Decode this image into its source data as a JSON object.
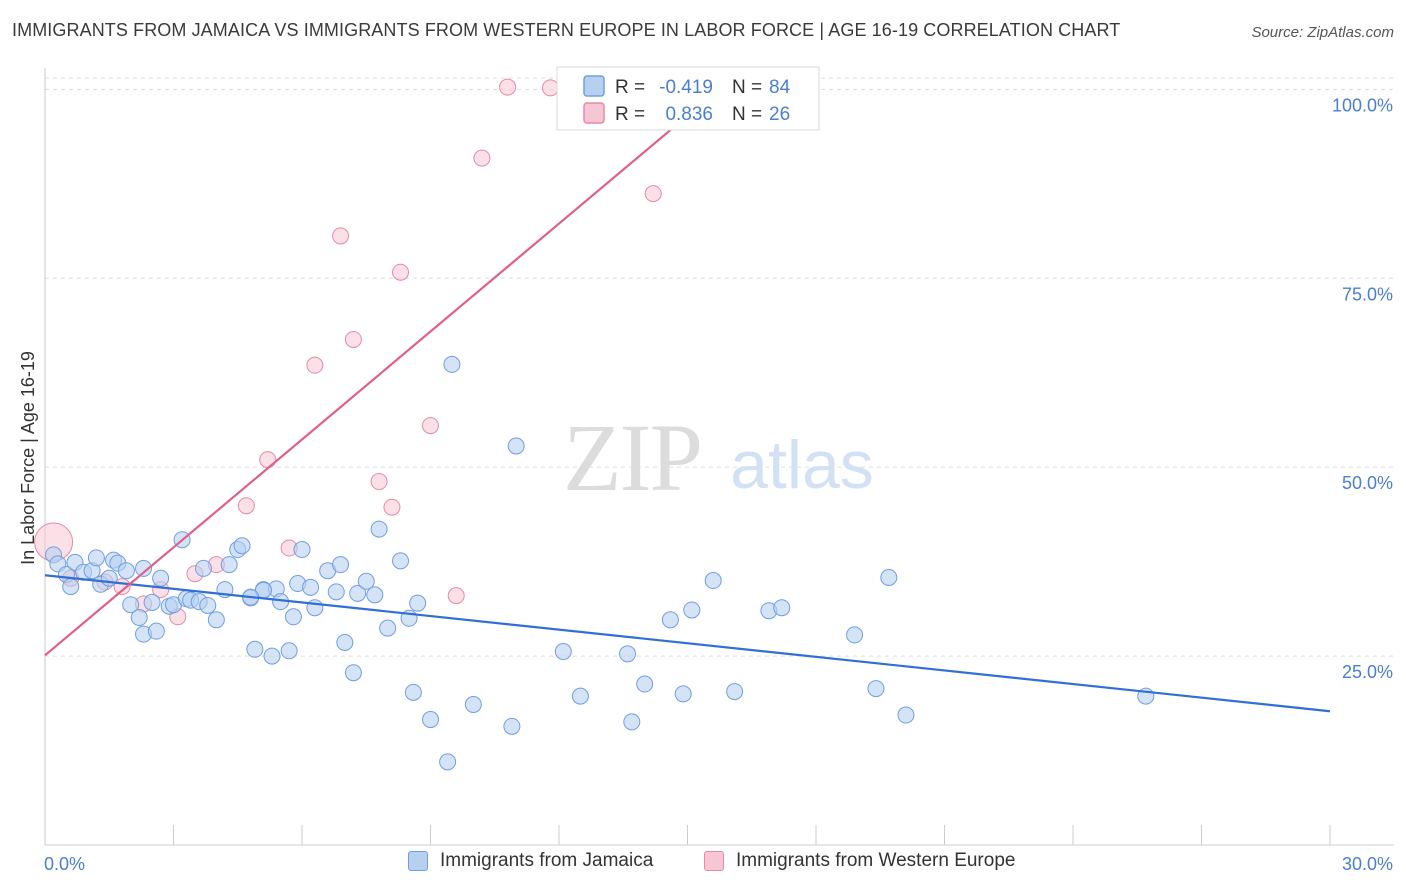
{
  "title": "IMMIGRANTS FROM JAMAICA VS IMMIGRANTS FROM WESTERN EUROPE IN LABOR FORCE | AGE 16-19 CORRELATION CHART",
  "source": "Source: ZipAtlas.com",
  "watermark": {
    "zip": "ZIP",
    "atlas": "atlas"
  },
  "colors": {
    "blue_fill": "#b8d0f0",
    "blue_stroke": "#6f9fe0",
    "blue_line": "#2f6fd6",
    "pink_fill": "#f7c6d4",
    "pink_stroke": "#e68aa6",
    "pink_line": "#e0608a",
    "tick_label": "#4a7fd0",
    "grid": "#dddddd"
  },
  "legend_stats": [
    {
      "r_label": "R =",
      "r_value": "-0.419",
      "n_label": "N =",
      "n_value": "84",
      "series": "blue"
    },
    {
      "r_label": "R =",
      "r_value": "0.836",
      "n_label": "N =",
      "n_value": "26",
      "series": "pink"
    }
  ],
  "chart_data": {
    "type": "scatter",
    "ylabel": "In Labor Force | Age 16-19",
    "xlim": [
      0,
      30
    ],
    "ylim": [
      0,
      101.5
    ],
    "x_tick_labels": [
      {
        "value": 0,
        "label": "0.0%"
      },
      {
        "value": 30,
        "label": "30.0%"
      }
    ],
    "y_tick_labels": [
      {
        "value": 25,
        "label": "25.0%"
      },
      {
        "value": 50,
        "label": "50.0%"
      },
      {
        "value": 75,
        "label": "75.0%"
      },
      {
        "value": 100,
        "label": "100.0%"
      }
    ],
    "grid": true,
    "legend_position": "bottom",
    "series": [
      {
        "name": "Immigrants from Jamaica",
        "color": "blue",
        "trend": {
          "x": [
            0,
            30
          ],
          "y": [
            35.7,
            17.7
          ]
        },
        "points": [
          [
            0.2,
            38.4
          ],
          [
            0.3,
            37.2
          ],
          [
            0.5,
            35.8
          ],
          [
            0.6,
            34.2
          ],
          [
            0.7,
            37.4
          ],
          [
            0.9,
            36.1
          ],
          [
            1.1,
            36.3
          ],
          [
            1.2,
            38.0
          ],
          [
            1.3,
            34.5
          ],
          [
            1.5,
            35.3
          ],
          [
            1.6,
            37.7
          ],
          [
            1.7,
            37.3
          ],
          [
            1.9,
            36.3
          ],
          [
            2.0,
            31.8
          ],
          [
            2.2,
            30.1
          ],
          [
            2.3,
            27.9
          ],
          [
            2.3,
            36.6
          ],
          [
            2.5,
            32.1
          ],
          [
            2.6,
            28.3
          ],
          [
            2.7,
            35.3
          ],
          [
            2.9,
            31.6
          ],
          [
            3.0,
            31.8
          ],
          [
            3.2,
            40.4
          ],
          [
            3.3,
            32.6
          ],
          [
            3.4,
            32.4
          ],
          [
            3.6,
            32.2
          ],
          [
            3.7,
            36.6
          ],
          [
            3.8,
            31.7
          ],
          [
            4.0,
            29.8
          ],
          [
            4.2,
            33.8
          ],
          [
            4.3,
            37.1
          ],
          [
            4.5,
            39.1
          ],
          [
            4.6,
            39.6
          ],
          [
            4.8,
            32.7
          ],
          [
            4.9,
            25.9
          ],
          [
            5.1,
            33.8
          ],
          [
            5.3,
            25.0
          ],
          [
            5.4,
            33.9
          ],
          [
            5.5,
            32.2
          ],
          [
            5.7,
            25.7
          ],
          [
            5.8,
            30.2
          ],
          [
            5.9,
            34.6
          ],
          [
            6.0,
            39.1
          ],
          [
            6.2,
            34.1
          ],
          [
            6.3,
            31.4
          ],
          [
            6.6,
            36.3
          ],
          [
            6.8,
            33.5
          ],
          [
            6.9,
            37.1
          ],
          [
            7.0,
            26.8
          ],
          [
            7.2,
            22.8
          ],
          [
            7.3,
            33.3
          ],
          [
            7.5,
            34.9
          ],
          [
            7.7,
            33.1
          ],
          [
            7.8,
            41.8
          ],
          [
            8.0,
            28.7
          ],
          [
            8.3,
            37.6
          ],
          [
            8.5,
            30.0
          ],
          [
            8.6,
            20.2
          ],
          [
            8.7,
            32.0
          ],
          [
            9.0,
            16.6
          ],
          [
            9.4,
            11.0
          ],
          [
            9.5,
            63.6
          ],
          [
            10.0,
            18.6
          ],
          [
            10.9,
            15.7
          ],
          [
            11.0,
            52.8
          ],
          [
            12.1,
            25.6
          ],
          [
            12.5,
            19.7
          ],
          [
            13.6,
            25.3
          ],
          [
            13.7,
            16.3
          ],
          [
            14.0,
            21.3
          ],
          [
            14.6,
            29.8
          ],
          [
            14.9,
            20.0
          ],
          [
            15.1,
            31.1
          ],
          [
            15.6,
            35.0
          ],
          [
            16.1,
            20.3
          ],
          [
            16.9,
            31.0
          ],
          [
            17.2,
            31.4
          ],
          [
            18.9,
            27.8
          ],
          [
            19.4,
            20.7
          ],
          [
            19.7,
            35.4
          ],
          [
            20.1,
            17.2
          ],
          [
            25.7,
            19.7
          ],
          [
            5.1,
            33.7
          ],
          [
            4.8,
            32.8
          ]
        ]
      },
      {
        "name": "Immigrants from Western Europe",
        "color": "pink",
        "trend": {
          "x": [
            0,
            15.9
          ],
          "y": [
            25.1,
            100.8
          ]
        },
        "points": [
          [
            0.2,
            40.1
          ],
          [
            0.6,
            35.3
          ],
          [
            1.4,
            34.8
          ],
          [
            1.8,
            34.2
          ],
          [
            2.3,
            31.9
          ],
          [
            2.7,
            33.8
          ],
          [
            3.1,
            30.2
          ],
          [
            3.5,
            35.9
          ],
          [
            4.0,
            37.1
          ],
          [
            4.7,
            44.9
          ],
          [
            5.2,
            51.0
          ],
          [
            5.7,
            39.3
          ],
          [
            6.3,
            63.5
          ],
          [
            6.9,
            80.6
          ],
          [
            7.2,
            66.9
          ],
          [
            7.8,
            48.1
          ],
          [
            8.1,
            44.7
          ],
          [
            8.3,
            75.8
          ],
          [
            9.0,
            55.5
          ],
          [
            9.6,
            33.0
          ],
          [
            10.2,
            90.9
          ],
          [
            10.8,
            100.3
          ],
          [
            11.8,
            100.2
          ],
          [
            13.8,
            100.3
          ],
          [
            14.2,
            86.2
          ],
          [
            15.9,
            100.1
          ]
        ]
      }
    ]
  },
  "legend_bottom": [
    {
      "label": "Immigrants from Jamaica",
      "color": "blue"
    },
    {
      "label": "Immigrants from Western Europe",
      "color": "pink"
    }
  ]
}
